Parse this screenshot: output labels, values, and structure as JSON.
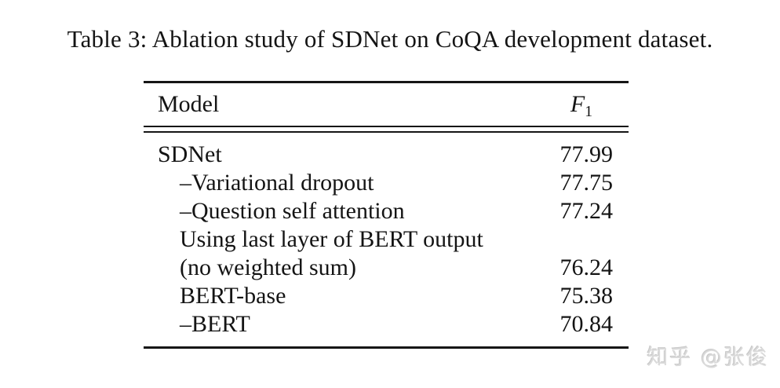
{
  "caption": {
    "text": "Table 3: Ablation study of SDNet on CoQA development dataset."
  },
  "table": {
    "header": {
      "model_label": "Model",
      "f1_letter": "F",
      "f1_subscript": "1"
    },
    "rows": [
      {
        "model": "SDNet",
        "f1": "77.99",
        "indent": false
      },
      {
        "model": "–Variational dropout",
        "f1": "77.75",
        "indent": true
      },
      {
        "model": "–Question self attention",
        "f1": "77.24",
        "indent": true
      },
      {
        "model": "Using last layer of BERT output",
        "f1": "",
        "indent": true
      },
      {
        "model": "(no weighted sum)",
        "f1": "76.24",
        "indent": true
      },
      {
        "model": "BERT-base",
        "f1": "75.38",
        "indent": true
      },
      {
        "model": "–BERT",
        "f1": "70.84",
        "indent": true
      }
    ]
  },
  "watermark": {
    "text": "知乎 @张俊",
    "color": "#dadada"
  }
}
